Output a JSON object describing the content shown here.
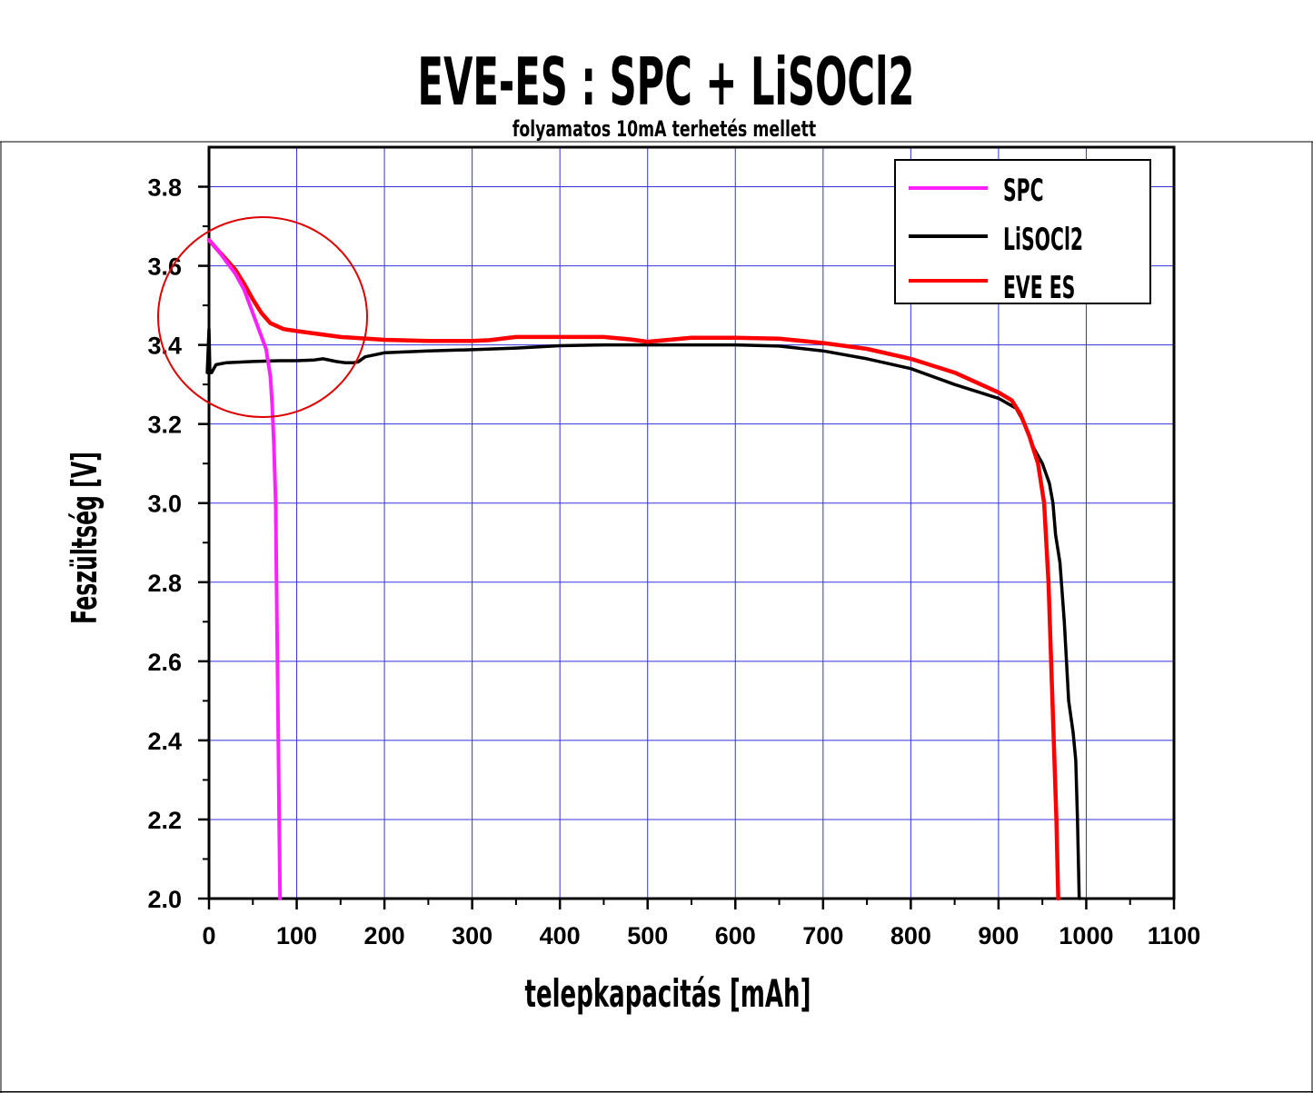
{
  "chart_data": {
    "type": "line",
    "title": "EVE-ES : SPC + LiSOCl2",
    "subtitle": "folyamatos 10mA terhetés mellett",
    "xlabel": "telepkapacitás [mAh]",
    "ylabel": "Feszültség [V]",
    "xlim": [
      0,
      1100
    ],
    "ylim": [
      2.0,
      3.9
    ],
    "x_ticks": [
      0,
      100,
      200,
      300,
      400,
      500,
      600,
      700,
      800,
      900,
      1000,
      1100
    ],
    "x_tick_labels": [
      "0",
      "100",
      "200",
      "300",
      "400",
      "500",
      "600",
      "700",
      "800",
      "900",
      "1000",
      "1100"
    ],
    "y_ticks": [
      2.0,
      2.2,
      2.4,
      2.6,
      2.8,
      3.0,
      3.2,
      3.4,
      3.6,
      3.8
    ],
    "y_tick_labels": [
      "2.0",
      "2.2",
      "2.4",
      "2.6",
      "2.8",
      "3.0",
      "3.2",
      "3.4",
      "3.6",
      "3.8"
    ],
    "grid": true,
    "legend_position": "top-right",
    "series": [
      {
        "name": "SPC",
        "color": "#ff20ff",
        "points": [
          [
            0,
            3.665
          ],
          [
            10,
            3.64
          ],
          [
            20,
            3.61
          ],
          [
            30,
            3.58
          ],
          [
            40,
            3.54
          ],
          [
            50,
            3.48
          ],
          [
            60,
            3.42
          ],
          [
            65,
            3.39
          ],
          [
            70,
            3.32
          ],
          [
            72,
            3.25
          ],
          [
            74,
            3.15
          ],
          [
            76,
            3.0
          ],
          [
            77,
            2.8
          ],
          [
            78,
            2.6
          ],
          [
            79,
            2.4
          ],
          [
            80,
            2.2
          ],
          [
            81,
            2.0
          ]
        ]
      },
      {
        "name": "LiSOCl2",
        "color": "#000000",
        "points": [
          [
            -2,
            3.33
          ],
          [
            0,
            3.44
          ],
          [
            1,
            3.33
          ],
          [
            3,
            3.33
          ],
          [
            8,
            3.35
          ],
          [
            20,
            3.355
          ],
          [
            50,
            3.358
          ],
          [
            80,
            3.36
          ],
          [
            100,
            3.36
          ],
          [
            120,
            3.362
          ],
          [
            130,
            3.365
          ],
          [
            145,
            3.358
          ],
          [
            155,
            3.355
          ],
          [
            165,
            3.355
          ],
          [
            170,
            3.357
          ],
          [
            178,
            3.37
          ],
          [
            200,
            3.38
          ],
          [
            250,
            3.385
          ],
          [
            300,
            3.388
          ],
          [
            350,
            3.392
          ],
          [
            400,
            3.398
          ],
          [
            450,
            3.4
          ],
          [
            500,
            3.4
          ],
          [
            550,
            3.4
          ],
          [
            600,
            3.4
          ],
          [
            650,
            3.397
          ],
          [
            700,
            3.385
          ],
          [
            750,
            3.365
          ],
          [
            800,
            3.34
          ],
          [
            850,
            3.3
          ],
          [
            900,
            3.265
          ],
          [
            920,
            3.24
          ],
          [
            930,
            3.2
          ],
          [
            940,
            3.14
          ],
          [
            950,
            3.1
          ],
          [
            958,
            3.05
          ],
          [
            962,
            3.0
          ],
          [
            965,
            2.92
          ],
          [
            970,
            2.85
          ],
          [
            975,
            2.7
          ],
          [
            980,
            2.5
          ],
          [
            985,
            2.42
          ],
          [
            988,
            2.35
          ],
          [
            990,
            2.2
          ],
          [
            992,
            2.0
          ]
        ]
      },
      {
        "name": "EVE ES",
        "color": "#ff0000",
        "points": [
          [
            0,
            3.665
          ],
          [
            10,
            3.64
          ],
          [
            20,
            3.615
          ],
          [
            30,
            3.59
          ],
          [
            40,
            3.555
          ],
          [
            50,
            3.515
          ],
          [
            60,
            3.48
          ],
          [
            70,
            3.455
          ],
          [
            85,
            3.44
          ],
          [
            100,
            3.435
          ],
          [
            150,
            3.42
          ],
          [
            200,
            3.413
          ],
          [
            250,
            3.41
          ],
          [
            300,
            3.41
          ],
          [
            320,
            3.412
          ],
          [
            350,
            3.42
          ],
          [
            400,
            3.42
          ],
          [
            450,
            3.42
          ],
          [
            480,
            3.414
          ],
          [
            500,
            3.408
          ],
          [
            520,
            3.412
          ],
          [
            550,
            3.418
          ],
          [
            600,
            3.418
          ],
          [
            650,
            3.416
          ],
          [
            700,
            3.405
          ],
          [
            750,
            3.39
          ],
          [
            800,
            3.365
          ],
          [
            850,
            3.33
          ],
          [
            900,
            3.28
          ],
          [
            915,
            3.26
          ],
          [
            925,
            3.225
          ],
          [
            935,
            3.17
          ],
          [
            945,
            3.1
          ],
          [
            952,
            3.0
          ],
          [
            957,
            2.8
          ],
          [
            960,
            2.6
          ],
          [
            963,
            2.4
          ],
          [
            966,
            2.2
          ],
          [
            968,
            2.0
          ]
        ]
      }
    ]
  }
}
